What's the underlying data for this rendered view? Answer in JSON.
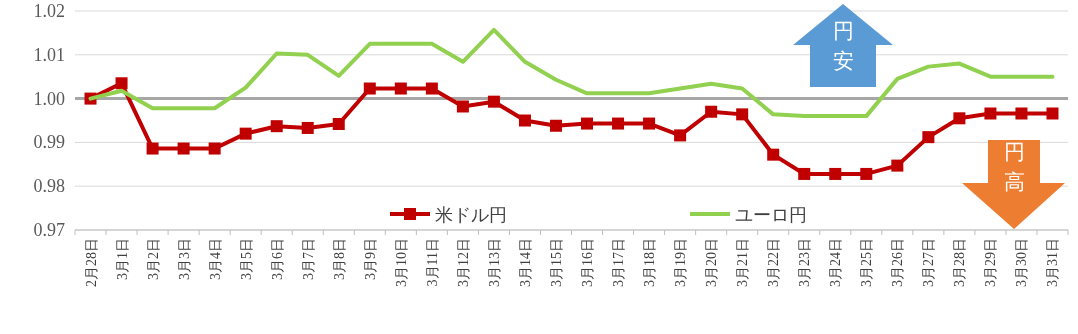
{
  "chart_data": {
    "type": "line",
    "categories": [
      "2月28日",
      "3月1日",
      "3月2日",
      "3月3日",
      "3月4日",
      "3月5日",
      "3月6日",
      "3月7日",
      "3月8日",
      "3月9日",
      "3月10日",
      "3月11日",
      "3月12日",
      "3月13日",
      "3月14日",
      "3月15日",
      "3月16日",
      "3月17日",
      "3月18日",
      "3月19日",
      "3月20日",
      "3月21日",
      "3月22日",
      "3月23日",
      "3月24日",
      "3月25日",
      "3月26日",
      "3月27日",
      "3月28日",
      "3月29日",
      "3月30日",
      "3月31日"
    ],
    "series": [
      {
        "name": "米ドル円",
        "color": "#c00000",
        "marker": "square",
        "values": [
          1.0,
          1.0035,
          0.9886,
          0.9886,
          0.9886,
          0.992,
          0.9937,
          0.9933,
          0.9942,
          1.0023,
          1.0023,
          1.0023,
          0.9982,
          0.9993,
          0.995,
          0.9938,
          0.9943,
          0.9943,
          0.9943,
          0.9916,
          0.997,
          0.9964,
          0.9872,
          0.9828,
          0.9828,
          0.9828,
          0.9847,
          0.9912,
          0.9955,
          0.9966,
          0.9966,
          0.9966
        ]
      },
      {
        "name": "ユーロ円",
        "color": "#92d050",
        "marker": "none",
        "values": [
          1.0,
          1.0018,
          0.9978,
          0.9978,
          0.9978,
          1.0025,
          1.0103,
          1.01,
          1.0052,
          1.0125,
          1.0125,
          1.0125,
          1.0084,
          1.0157,
          1.0084,
          1.0043,
          1.0012,
          1.0012,
          1.0012,
          1.0023,
          1.0034,
          1.0023,
          0.9964,
          0.996,
          0.996,
          0.996,
          1.0045,
          1.0073,
          1.008,
          1.005,
          1.005,
          1.005
        ]
      }
    ],
    "ylim": [
      0.97,
      1.02
    ],
    "yticks": [
      {
        "value": 0.97,
        "label": "0.97"
      },
      {
        "value": 0.98,
        "label": "0.98"
      },
      {
        "value": 0.99,
        "label": "0.99"
      },
      {
        "value": 1.0,
        "label": "1.00"
      },
      {
        "value": 1.01,
        "label": "1.01"
      },
      {
        "value": 1.02,
        "label": "1.02"
      }
    ],
    "ref_lines": [
      {
        "axis": "y",
        "value": 1.0,
        "color": "#a6a6a6"
      }
    ],
    "annotations": [
      "円安",
      "円高"
    ],
    "grid": "y",
    "legend": "bottom",
    "line_style": "solid"
  }
}
